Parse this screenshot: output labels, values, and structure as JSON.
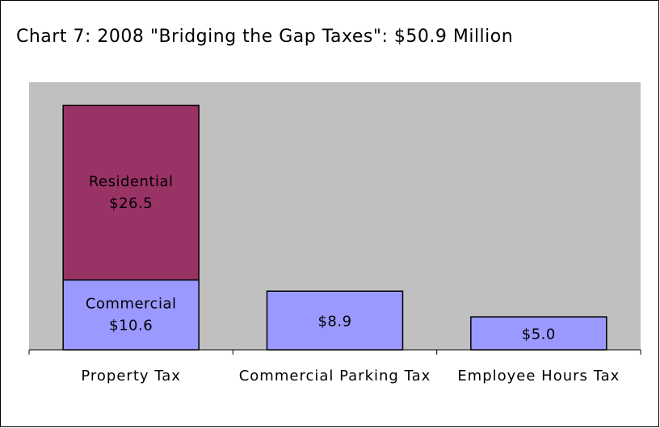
{
  "chart_data": {
    "type": "stacked_bar",
    "title": "Chart 7: 2008 \"Bridging the Gap Taxes\": $50.9 Million",
    "categories": [
      "Property Tax",
      "Commercial Parking Tax",
      "Employee Hours Tax"
    ],
    "series": [
      {
        "name": "Commercial",
        "color": "#9999ff",
        "values": [
          10.6,
          8.9,
          5.0
        ],
        "value_labels": [
          "$10.6",
          "$8.9",
          "$5.0"
        ]
      },
      {
        "name": "Residential",
        "color": "#993366",
        "values": [
          26.5,
          null,
          null
        ],
        "value_labels": [
          "$26.5",
          null,
          null
        ]
      }
    ],
    "ylim": [
      0,
      40.6
    ]
  }
}
